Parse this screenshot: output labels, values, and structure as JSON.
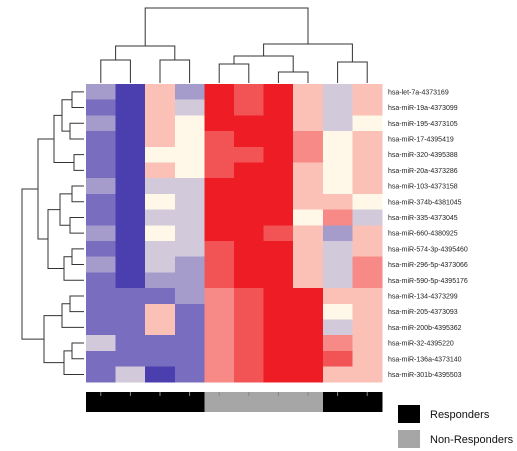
{
  "chart_data": {
    "type": "heatmap",
    "title": "",
    "rows": [
      "hsa-let-7a-4373169",
      "hsa-miR-19a-4373099",
      "hsa-miR-195-4373105",
      "hsa-miR-17-4395419",
      "hsa-miR-320-4395388",
      "hsa-miR-20a-4373286",
      "hsa-miR-103-4373158",
      "hsa-miR-374b-4381045",
      "hsa-miR-335-4373045",
      "hsa-miR-660-4380925",
      "hsa-miR-574-3p-4395460",
      "hsa-miR-296-5p-4373066",
      "hsa-miR-590-5p-4395176",
      "hsa-miR-134-4373299",
      "hsa-miR-205-4373093",
      "hsa-miR-200b-4395362",
      "hsa-miR-32-4395220",
      "hsa-miR-136a-4373140",
      "hsa-miR-301b-4395503"
    ],
    "column_groups": [
      "R",
      "R",
      "R",
      "R",
      "N",
      "N",
      "N",
      "N",
      "R",
      "R"
    ],
    "values": [
      [
        -2,
        -4,
        1,
        -2,
        4,
        3,
        4,
        1,
        -1,
        1
      ],
      [
        -3,
        -4,
        1,
        -1,
        4,
        3,
        4,
        1,
        -1,
        1
      ],
      [
        -2,
        -4,
        1,
        0,
        4,
        4,
        4,
        1,
        -1,
        0
      ],
      [
        -3,
        -4,
        1,
        0,
        3,
        4,
        4,
        2,
        0,
        1
      ],
      [
        -3,
        -4,
        0,
        0,
        3,
        3,
        4,
        2,
        0,
        1
      ],
      [
        -3,
        -4,
        1,
        0,
        3,
        4,
        4,
        1,
        0,
        1
      ],
      [
        -2,
        -4,
        -1,
        -1,
        4,
        4,
        4,
        1,
        0,
        1
      ],
      [
        -3,
        -4,
        0,
        -1,
        4,
        4,
        4,
        1,
        1,
        0
      ],
      [
        -3,
        -4,
        -1,
        -1,
        4,
        4,
        4,
        0,
        2,
        -1
      ],
      [
        -2,
        -4,
        0,
        -1,
        4,
        4,
        3,
        1,
        -2,
        1
      ],
      [
        -3,
        -4,
        -1,
        -1,
        3,
        4,
        4,
        1,
        -1,
        1
      ],
      [
        -2,
        -4,
        -1,
        -2,
        3,
        4,
        4,
        1,
        -1,
        2
      ],
      [
        -3,
        -4,
        -2,
        -2,
        3,
        4,
        4,
        1,
        -1,
        2
      ],
      [
        -3,
        -3,
        -3,
        -2,
        2,
        3,
        4,
        4,
        1,
        1
      ],
      [
        -3,
        -3,
        1,
        -3,
        2,
        3,
        4,
        4,
        0,
        1
      ],
      [
        -3,
        -3,
        1,
        -3,
        2,
        3,
        4,
        4,
        -1,
        1
      ],
      [
        -1,
        -3,
        -3,
        -3,
        2,
        3,
        4,
        4,
        2,
        1
      ],
      [
        -3,
        -3,
        -3,
        -3,
        2,
        3,
        4,
        4,
        3,
        1
      ],
      [
        -3,
        -1,
        -4,
        -3,
        2,
        3,
        4,
        4,
        1,
        1
      ]
    ],
    "legend": [
      {
        "group": "R",
        "label": "Responders",
        "color": "#000000"
      },
      {
        "group": "N",
        "label": "Non-Responders",
        "color": "#a6a6a6"
      }
    ],
    "color_scale": {
      "low": "#4b3fb0",
      "mid": "#fff8e8",
      "high": "#ee1c24"
    },
    "legend_placement": "bottom-right"
  }
}
